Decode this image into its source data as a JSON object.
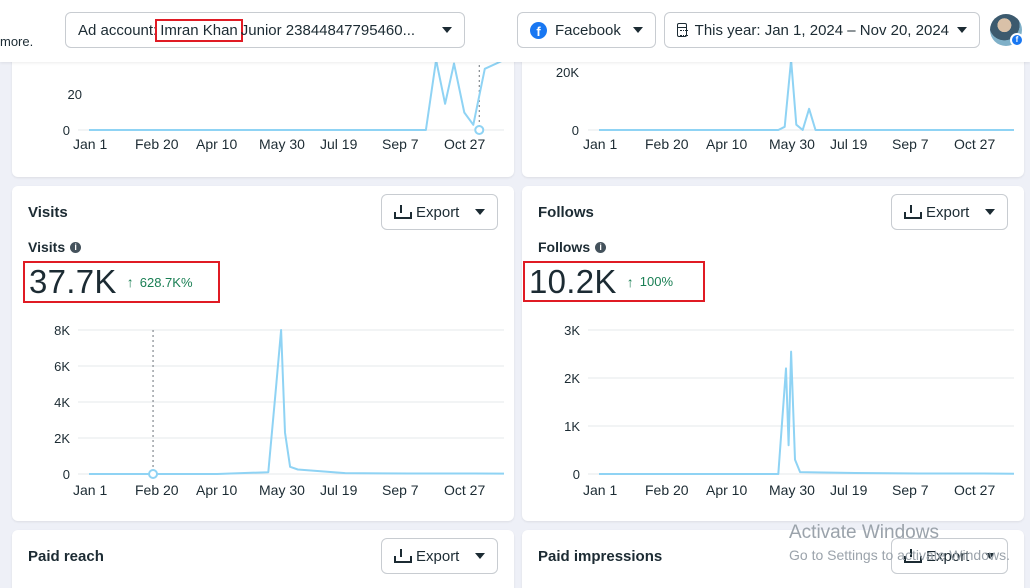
{
  "header": {
    "more_text": "more.",
    "ad_account_label": "Ad account:",
    "ad_account_name": "Imran Khan",
    "ad_account_rest": "Junior 23844847795460...",
    "platform": "Facebook",
    "date_range": "This year: Jan 1, 2024 – Nov 20, 2024"
  },
  "export_label": "Export",
  "x_ticks": [
    "Jan 1",
    "Feb 20",
    "Apr 10",
    "May 30",
    "Jul 19",
    "Sep 7",
    "Oct 27"
  ],
  "top_left": {
    "y_ticks": [
      "20",
      "0"
    ]
  },
  "top_right": {
    "y_ticks": [
      "20K",
      "0"
    ]
  },
  "visits": {
    "title": "Visits",
    "metric_label": "Visits",
    "value": "37.7K",
    "change": "628.7K%",
    "y_ticks": [
      "8K",
      "6K",
      "4K",
      "2K",
      "0"
    ]
  },
  "follows": {
    "title": "Follows",
    "metric_label": "Follows",
    "value": "10.2K",
    "change": "100%",
    "y_ticks": [
      "3K",
      "2K",
      "1K",
      "0"
    ]
  },
  "paid_reach": {
    "title": "Paid reach"
  },
  "paid_impressions": {
    "title": "Paid impressions"
  },
  "watermark": {
    "line1": "Activate Windows",
    "line2": "Go to Settings to activate Windows."
  },
  "colors": {
    "series": "#8fd3f4",
    "accent": "#1877f2",
    "positive": "#1a7f54",
    "highlight": "#e01b24"
  },
  "chart_data": [
    {
      "type": "line",
      "x": [
        "Jan 1",
        "Feb 20",
        "Apr 10",
        "May 30",
        "Jul 19",
        "Sep 7",
        "Sep 20",
        "Sep 28",
        "Oct 5",
        "Oct 12",
        "Oct 20",
        "Oct 27",
        "Nov 5",
        "Nov 20"
      ],
      "values": [
        0,
        0,
        0,
        0,
        0,
        0,
        0,
        40,
        15,
        38,
        10,
        3,
        35,
        40
      ],
      "ylim": [
        0,
        40
      ]
    },
    {
      "type": "line",
      "x": [
        "Jan 1",
        "Feb 20",
        "Apr 10",
        "May 20",
        "May 25",
        "May 30",
        "Jun 3",
        "Jun 8",
        "Jun 13",
        "Jun 18",
        "Jul 19",
        "Sep 7",
        "Oct 27",
        "Nov 20"
      ],
      "values": [
        0,
        0,
        0,
        0,
        1500,
        33000,
        2500,
        0,
        10000,
        0,
        0,
        0,
        0,
        0
      ],
      "ylim": [
        0,
        33000
      ]
    },
    {
      "type": "line",
      "title": "Visits",
      "x": [
        "Jan 1",
        "Feb 20",
        "Apr 10",
        "May 20",
        "May 26",
        "May 30",
        "Jun 2",
        "Jun 6",
        "Jun 12",
        "Jul 19",
        "Sep 7",
        "Oct 27",
        "Nov 20"
      ],
      "values": [
        0,
        0,
        0,
        100,
        4800,
        8000,
        2300,
        400,
        250,
        50,
        30,
        30,
        20
      ],
      "ylim": [
        0,
        8000
      ]
    },
    {
      "type": "line",
      "title": "Follows",
      "x": [
        "Jan 1",
        "Feb 20",
        "Apr 10",
        "May 20",
        "May 26",
        "May 28",
        "May 30",
        "Jun 2",
        "Jun 6",
        "Jul 19",
        "Sep 7",
        "Oct 27",
        "Nov 20"
      ],
      "values": [
        0,
        0,
        0,
        0,
        2200,
        600,
        2550,
        300,
        40,
        20,
        10,
        10,
        5
      ],
      "ylim": [
        0,
        3000
      ]
    }
  ]
}
